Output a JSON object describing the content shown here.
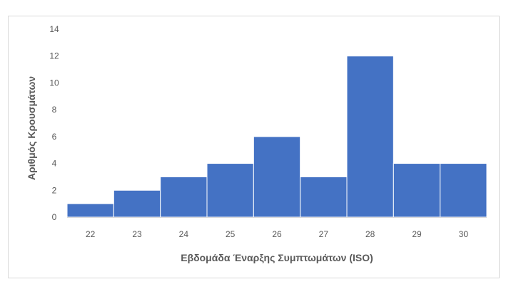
{
  "chart_data": {
    "type": "bar",
    "categories": [
      "22",
      "23",
      "24",
      "25",
      "26",
      "27",
      "28",
      "29",
      "30"
    ],
    "values": [
      1,
      2,
      3,
      4,
      6,
      3,
      12,
      4,
      4
    ],
    "title": "",
    "xlabel": "Εβδομάδα Έναρξης Συμπτωμάτων (ISO)",
    "ylabel": "Αριθμός Κρουσμάτων",
    "ylim": [
      0,
      14
    ],
    "yticks": [
      0,
      2,
      4,
      6,
      8,
      10,
      12,
      14
    ],
    "grid": false,
    "legend": "none",
    "bar_color": "#4472C4",
    "bar_gap": "none"
  }
}
